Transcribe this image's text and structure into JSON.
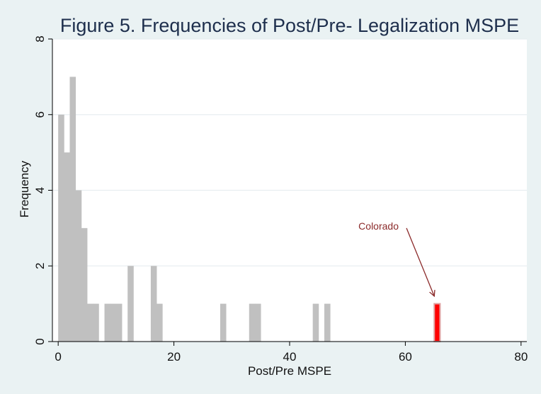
{
  "chart_data": {
    "type": "bar",
    "title": "Figure 5. Frequencies of Post/Pre- Legalization MSPE",
    "xlabel": "Post/Pre MSPE",
    "ylabel": "Frequency",
    "xlim": [
      -1,
      81
    ],
    "ylim": [
      0,
      8
    ],
    "xticks": [
      0,
      20,
      40,
      60,
      80
    ],
    "yticks": [
      0,
      2,
      4,
      6,
      8
    ],
    "grid": true,
    "bin_width": 1,
    "bars": [
      {
        "x": 0.5,
        "value": 6
      },
      {
        "x": 1.5,
        "value": 5
      },
      {
        "x": 2.5,
        "value": 7
      },
      {
        "x": 3.5,
        "value": 4
      },
      {
        "x": 4.5,
        "value": 3
      },
      {
        "x": 5.5,
        "value": 1
      },
      {
        "x": 6.5,
        "value": 1
      },
      {
        "x": 8.5,
        "value": 1
      },
      {
        "x": 9.5,
        "value": 1
      },
      {
        "x": 10.5,
        "value": 1
      },
      {
        "x": 12.5,
        "value": 2
      },
      {
        "x": 16.5,
        "value": 2
      },
      {
        "x": 17.5,
        "value": 1
      },
      {
        "x": 28.5,
        "value": 1
      },
      {
        "x": 33.5,
        "value": 1
      },
      {
        "x": 34.5,
        "value": 1
      },
      {
        "x": 44.5,
        "value": 1
      },
      {
        "x": 46.5,
        "value": 1
      },
      {
        "x": 65.5,
        "value": 1,
        "highlight": true
      }
    ],
    "colors": {
      "bar": "#c0c0c0",
      "highlight": "#ff0000",
      "highlight_outline": "#e0a0a0",
      "plot_background": "#ffffff",
      "grid": "#e8eef0",
      "annotation": "#8b2a2a",
      "title": "#1e2f4d"
    },
    "annotation": {
      "text": "Colorado",
      "from": {
        "x": 60.2,
        "y": 3.0
      },
      "to": {
        "x": 65.0,
        "y": 1.2
      }
    }
  }
}
